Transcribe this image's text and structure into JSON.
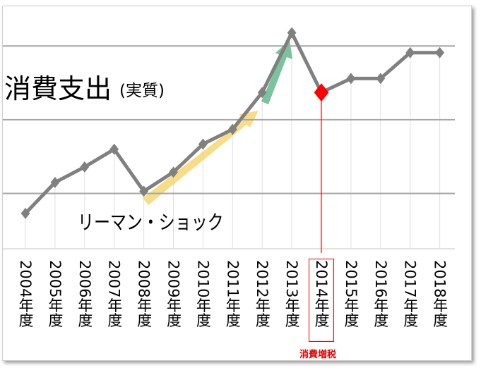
{
  "chart_data": {
    "type": "line",
    "title": "消費支出",
    "subtitle": "(実質)",
    "annotations": [
      "リーマン・ショック",
      "消費増税"
    ],
    "categories": [
      "2004年度",
      "2005年度",
      "2006年度",
      "2007年度",
      "2008年度",
      "2009年度",
      "2010年度",
      "2011年度",
      "2012年度",
      "2013年度",
      "2014年度",
      "2015年度",
      "2016年度",
      "2017年度",
      "2018年度"
    ],
    "series": [
      {
        "color": "#808080",
        "values": [
          0.73,
          1.15,
          1.36,
          1.6,
          1.03,
          1.29,
          1.67,
          1.87,
          2.37,
          3.18,
          2.37,
          2.56,
          2.56,
          2.91,
          2.91
        ]
      }
    ],
    "highlight_index": 10,
    "highlight_color": "#ff0000",
    "ylim": [
      0.25,
      3.5
    ],
    "gridlines": [
      1,
      2,
      3
    ],
    "grid": true
  }
}
